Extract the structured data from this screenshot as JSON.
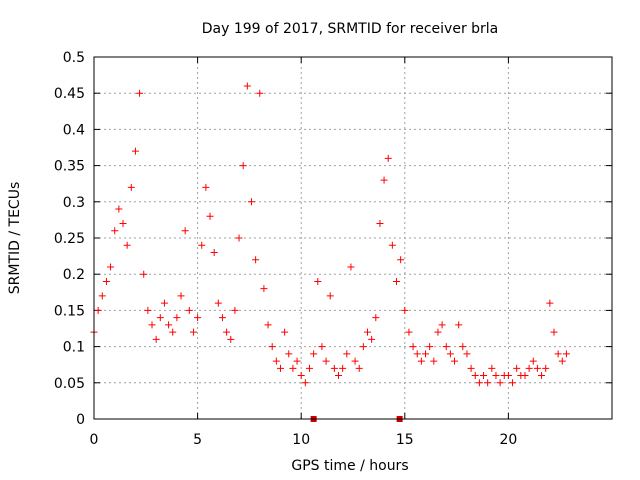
{
  "chart_data": {
    "type": "scatter",
    "title": "Day 199 of 2017, SRMTID for receiver brla",
    "xlabel": "GPS time / hours",
    "ylabel": "SRMTID / TECUs",
    "xlim": [
      0,
      25
    ],
    "ylim": [
      0,
      0.5
    ],
    "xticks": [
      "0",
      "5",
      "10",
      "15",
      "20"
    ],
    "yticks": [
      "0",
      "0.05",
      "0.1",
      "0.15",
      "0.2",
      "0.25",
      "0.3",
      "0.35",
      "0.4",
      "0.45",
      "0.5"
    ],
    "grid": true,
    "series": [
      {
        "name": "brla",
        "marker": "+",
        "color": "#ff0000",
        "x": [
          0.0,
          0.2,
          0.4,
          0.6,
          0.8,
          1.0,
          1.2,
          1.4,
          1.6,
          1.8,
          2.0,
          2.2,
          2.4,
          2.6,
          2.8,
          3.0,
          3.2,
          3.4,
          3.6,
          3.8,
          4.0,
          4.2,
          4.4,
          4.6,
          4.8,
          5.0,
          5.2,
          5.4,
          5.6,
          5.8,
          6.0,
          6.2,
          6.4,
          6.6,
          6.8,
          7.0,
          7.2,
          7.4,
          7.6,
          7.8,
          8.0,
          8.2,
          8.4,
          8.6,
          8.8,
          9.0,
          9.2,
          9.4,
          9.6,
          9.8,
          10.0,
          10.2,
          10.4,
          10.6,
          10.8,
          11.0,
          11.2,
          11.4,
          11.6,
          11.8,
          12.0,
          12.2,
          12.4,
          12.6,
          12.8,
          13.0,
          13.2,
          13.4,
          13.6,
          13.8,
          14.0,
          14.2,
          14.4,
          14.6,
          14.8,
          15.0,
          15.2,
          15.4,
          15.6,
          15.8,
          16.0,
          16.2,
          16.4,
          16.6,
          16.8,
          17.0,
          17.2,
          17.4,
          17.6,
          17.8,
          18.0,
          18.2,
          18.4,
          18.6,
          18.8,
          19.0,
          19.2,
          19.4,
          19.6,
          19.8,
          20.0,
          20.2,
          20.4,
          20.6,
          20.8,
          21.0,
          21.2,
          21.4,
          21.6,
          21.8,
          22.0,
          22.2,
          22.4,
          22.6,
          22.8
        ],
        "y": [
          0.12,
          0.15,
          0.17,
          0.19,
          0.21,
          0.26,
          0.29,
          0.27,
          0.24,
          0.32,
          0.37,
          0.45,
          0.2,
          0.15,
          0.13,
          0.11,
          0.14,
          0.16,
          0.13,
          0.12,
          0.14,
          0.17,
          0.26,
          0.15,
          0.12,
          0.14,
          0.24,
          0.32,
          0.28,
          0.23,
          0.16,
          0.14,
          0.12,
          0.11,
          0.15,
          0.25,
          0.35,
          0.46,
          0.3,
          0.22,
          0.45,
          0.18,
          0.13,
          0.1,
          0.08,
          0.07,
          0.12,
          0.09,
          0.07,
          0.08,
          0.06,
          0.05,
          0.07,
          0.09,
          0.19,
          0.1,
          0.08,
          0.17,
          0.07,
          0.06,
          0.07,
          0.09,
          0.21,
          0.08,
          0.07,
          0.1,
          0.12,
          0.11,
          0.14,
          0.27,
          0.33,
          0.36,
          0.24,
          0.19,
          0.22,
          0.15,
          0.12,
          0.1,
          0.09,
          0.08,
          0.09,
          0.1,
          0.08,
          0.12,
          0.13,
          0.1,
          0.09,
          0.08,
          0.13,
          0.1,
          0.09,
          0.07,
          0.06,
          0.05,
          0.06,
          0.05,
          0.07,
          0.06,
          0.05,
          0.06,
          0.06,
          0.05,
          0.07,
          0.06,
          0.06,
          0.07,
          0.08,
          0.07,
          0.06,
          0.07,
          0.16,
          0.12,
          0.09,
          0.08,
          0.09
        ]
      }
    ],
    "axis_markers": [
      10.6,
      14.75
    ]
  }
}
